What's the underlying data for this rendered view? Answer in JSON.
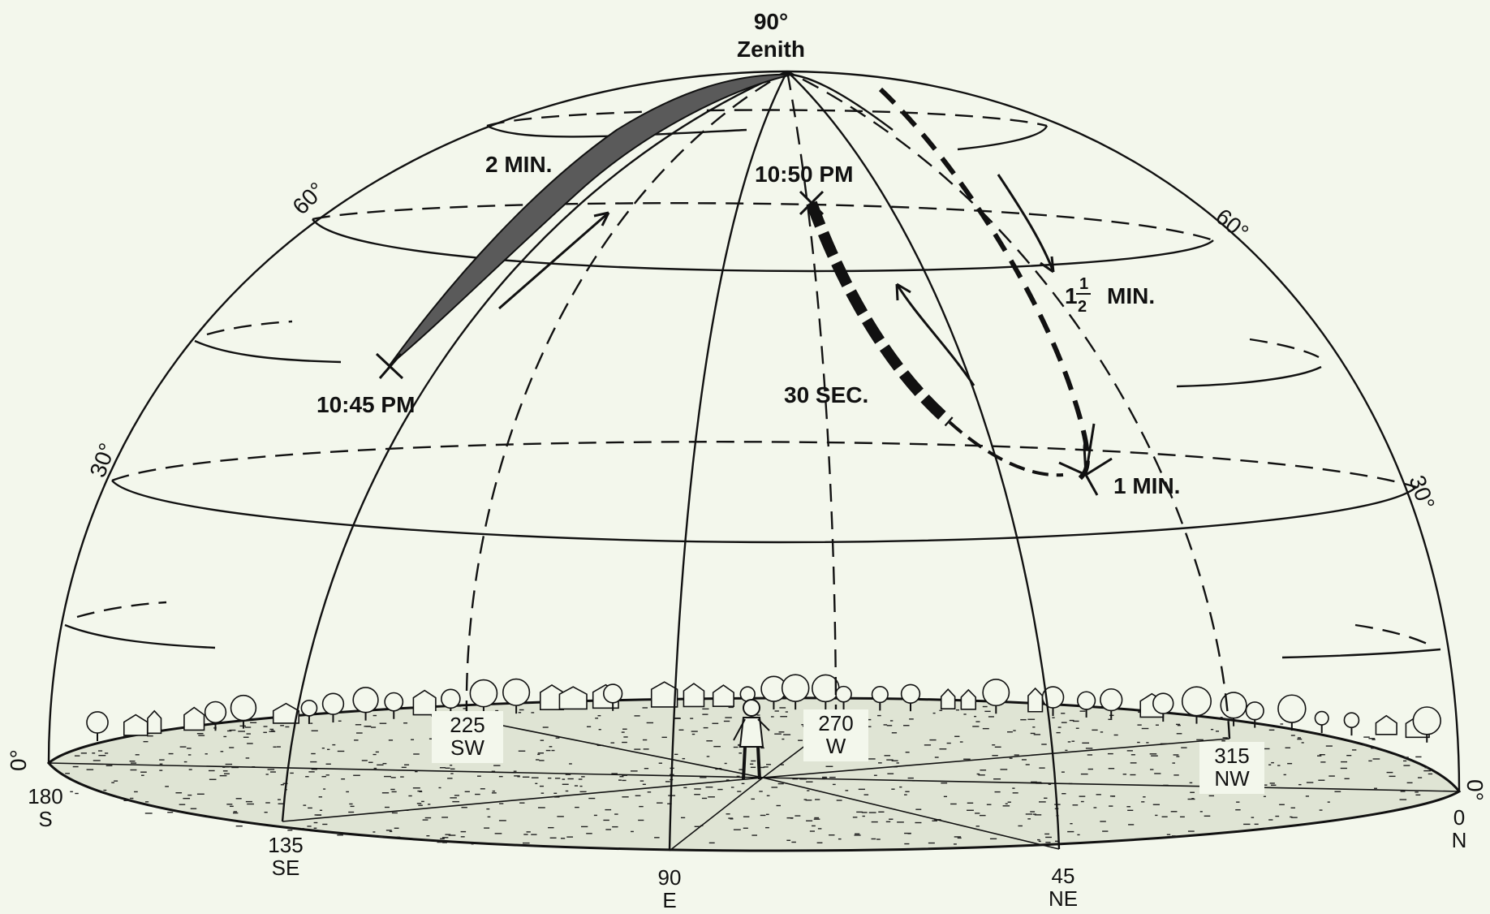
{
  "zenith": {
    "degree": "90°",
    "label": "Zenith"
  },
  "altitude_labels": {
    "left_60": "60°",
    "right_60": "60°",
    "left_30": "30°",
    "right_30": "30°",
    "left_0": "0°",
    "right_0": "0°"
  },
  "compass": [
    {
      "deg": "180",
      "dir": "S"
    },
    {
      "deg": "135",
      "dir": "SE"
    },
    {
      "deg": "90",
      "dir": "E"
    },
    {
      "deg": "45",
      "dir": "NE"
    },
    {
      "deg": "0",
      "dir": "N"
    },
    {
      "deg": "225",
      "dir": "SW"
    },
    {
      "deg": "270",
      "dir": "W"
    },
    {
      "deg": "315",
      "dir": "NW"
    }
  ],
  "annotations": {
    "time_start": "10:45 PM",
    "time_end": "10:50 PM",
    "t_2min": "2 MIN.",
    "t_30sec": "30 SEC.",
    "t_1min": "1 MIN.",
    "t_1half_whole": "1",
    "t_1half_num": "1",
    "t_1half_den": "2",
    "t_1half_unit": "MIN."
  },
  "colors": {
    "background": "#f3f7ec",
    "ink": "#111111"
  }
}
